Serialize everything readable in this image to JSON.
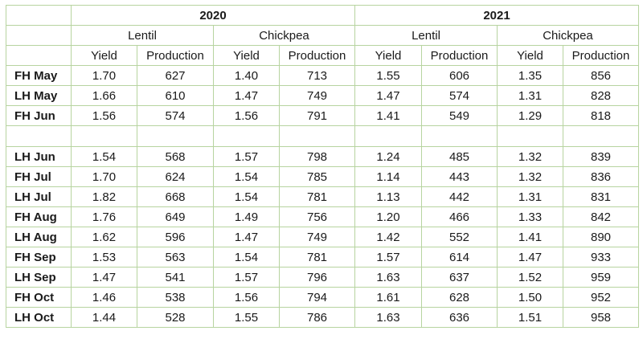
{
  "chart_data": {
    "type": "table",
    "years": [
      "2020",
      "2021"
    ],
    "crops": [
      "Lentil",
      "Chickpea"
    ],
    "measures": [
      "Yield",
      "Production"
    ],
    "rows": [
      {
        "label": "FH May",
        "values": [
          "1.70",
          "627",
          "1.40",
          "713",
          "1.55",
          "606",
          "1.35",
          "856"
        ]
      },
      {
        "label": "LH May",
        "values": [
          "1.66",
          "610",
          "1.47",
          "749",
          "1.47",
          "574",
          "1.31",
          "828"
        ]
      },
      {
        "label": "FH Jun",
        "values": [
          "1.56",
          "574",
          "1.56",
          "791",
          "1.41",
          "549",
          "1.29",
          "818"
        ]
      },
      {
        "gap": true
      },
      {
        "label": "LH Jun",
        "values": [
          "1.54",
          "568",
          "1.57",
          "798",
          "1.24",
          "485",
          "1.32",
          "839"
        ]
      },
      {
        "label": "FH Jul",
        "values": [
          "1.70",
          "624",
          "1.54",
          "785",
          "1.14",
          "443",
          "1.32",
          "836"
        ]
      },
      {
        "label": "LH Jul",
        "values": [
          "1.82",
          "668",
          "1.54",
          "781",
          "1.13",
          "442",
          "1.31",
          "831"
        ]
      },
      {
        "label": "FH Aug",
        "values": [
          "1.76",
          "649",
          "1.49",
          "756",
          "1.20",
          "466",
          "1.33",
          "842"
        ]
      },
      {
        "label": "LH Aug",
        "values": [
          "1.62",
          "596",
          "1.47",
          "749",
          "1.42",
          "552",
          "1.41",
          "890"
        ]
      },
      {
        "label": "FH Sep",
        "values": [
          "1.53",
          "563",
          "1.54",
          "781",
          "1.57",
          "614",
          "1.47",
          "933"
        ]
      },
      {
        "label": "LH Sep",
        "values": [
          "1.47",
          "541",
          "1.57",
          "796",
          "1.63",
          "637",
          "1.52",
          "959"
        ]
      },
      {
        "label": "FH Oct",
        "values": [
          "1.46",
          "538",
          "1.56",
          "794",
          "1.61",
          "628",
          "1.50",
          "952"
        ]
      },
      {
        "label": "LH Oct",
        "values": [
          "1.44",
          "528",
          "1.55",
          "786",
          "1.63",
          "636",
          "1.51",
          "958"
        ]
      }
    ]
  },
  "colors": {
    "border": "#b7d4a0",
    "text": "#1a1a1a"
  }
}
